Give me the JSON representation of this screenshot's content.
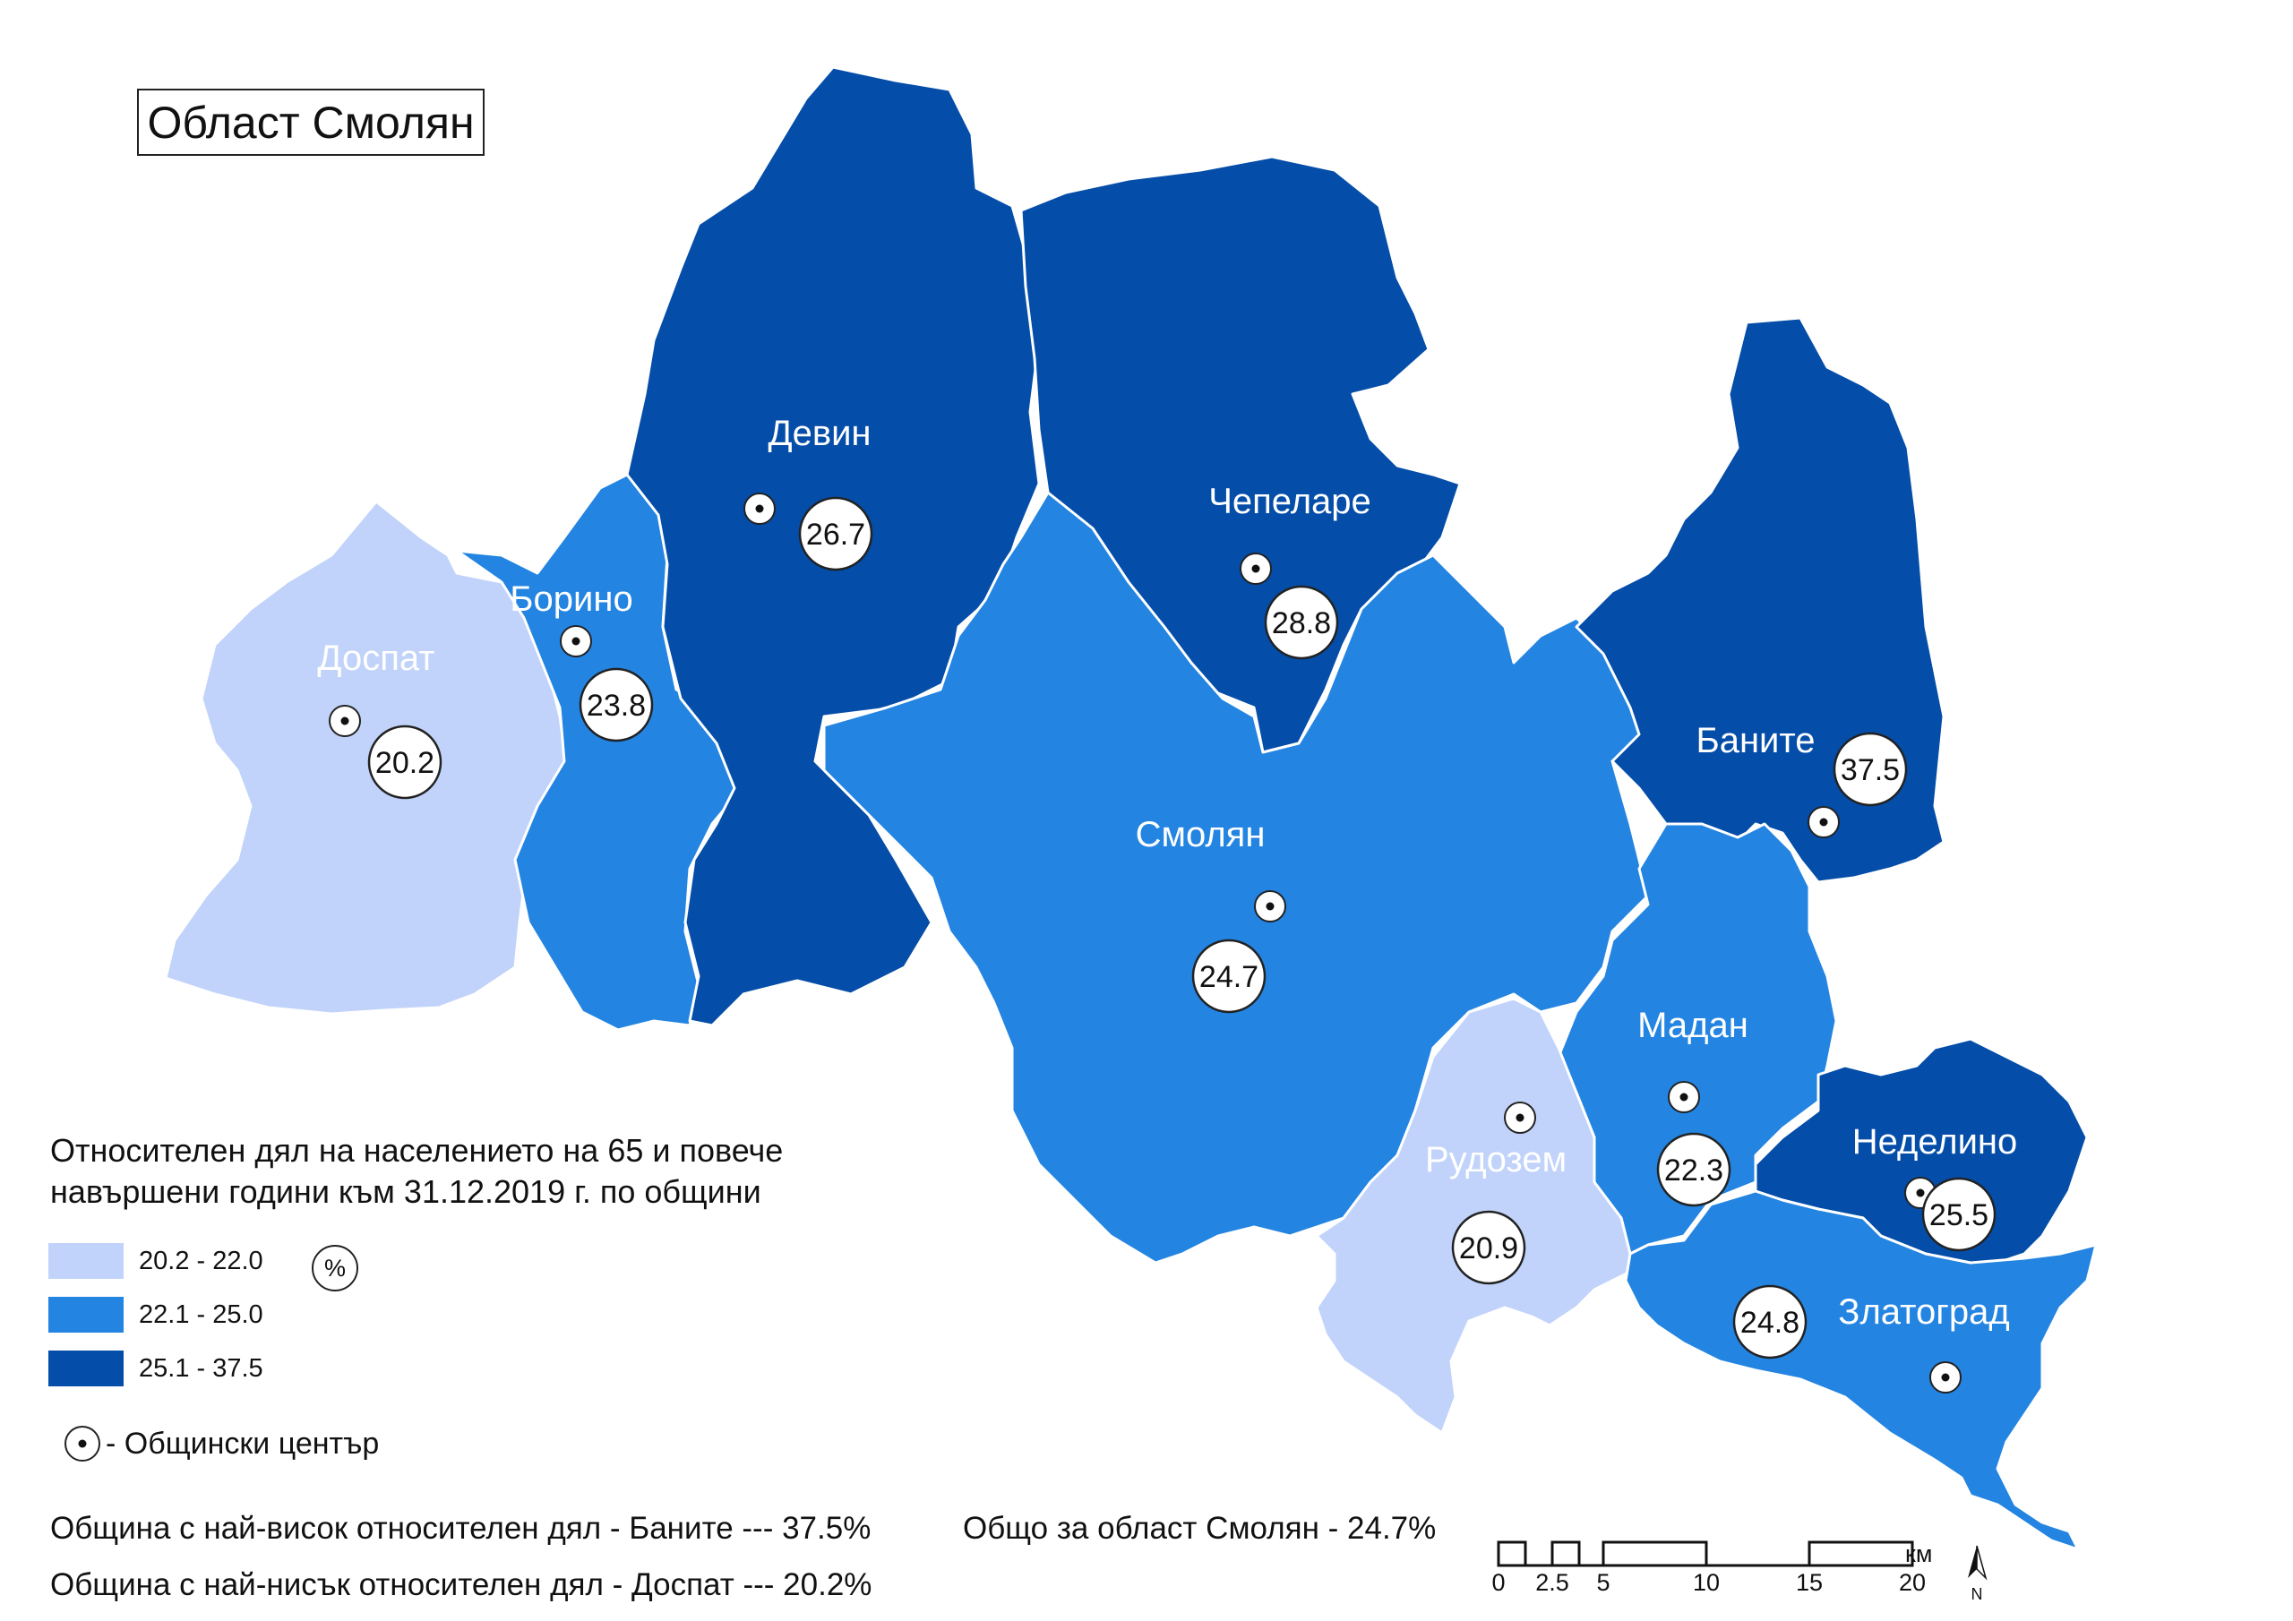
{
  "title": "Област Смолян",
  "legend": {
    "title_line1": "Относителен дял на населението на 65 и повече",
    "title_line2": "навършени години към 31.12.2019 г. по общини",
    "unit": "%",
    "classes": [
      {
        "label": "20.2 - 22.0",
        "color": "#c1d3fa"
      },
      {
        "label": "22.1 - 25.0",
        "color": "#2384e1"
      },
      {
        "label": "25.1 - 37.5",
        "color": "#044da8"
      }
    ],
    "center_label": "- Общински център"
  },
  "municipalities": [
    {
      "name": "Доспат",
      "value": "20.2",
      "class": 0
    },
    {
      "name": "Борино",
      "value": "23.8",
      "class": 1
    },
    {
      "name": "Девин",
      "value": "26.7",
      "class": 2
    },
    {
      "name": "Чепеларе",
      "value": "28.8",
      "class": 2
    },
    {
      "name": "Смолян",
      "value": "24.7",
      "class": 1
    },
    {
      "name": "Баните",
      "value": "37.5",
      "class": 2
    },
    {
      "name": "Мадан",
      "value": "22.3",
      "class": 1
    },
    {
      "name": "Рудозем",
      "value": "20.9",
      "class": 0
    },
    {
      "name": "Неделино",
      "value": "25.5",
      "class": 2
    },
    {
      "name": "Златоград",
      "value": "24.8",
      "class": 1
    }
  ],
  "stats": {
    "highest": "Община с най-висок относителен дял - Баните --- 37.5%",
    "lowest": "Община с най-нисък относителен дял - Доспат --- 20.2%",
    "total": "Общо за област Смолян - 24.7%"
  },
  "scale_bar": {
    "ticks": [
      "0",
      "2.5",
      "5",
      "10",
      "15",
      "20"
    ],
    "unit": "км",
    "north_label": "N"
  }
}
